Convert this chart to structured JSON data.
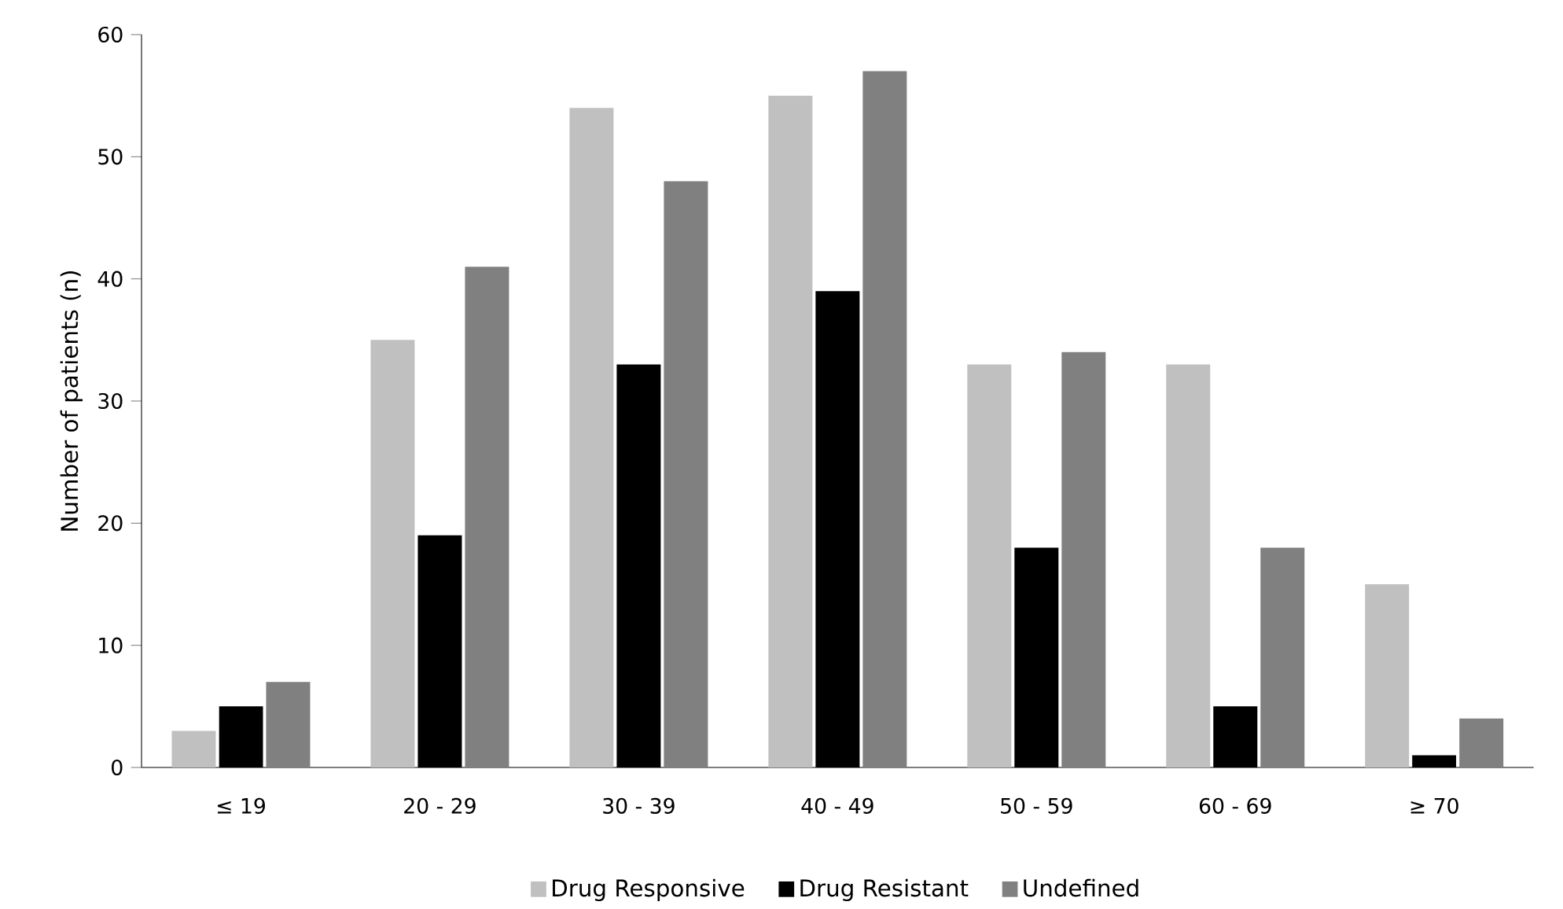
{
  "chart_data": {
    "type": "bar",
    "ylabel": "Number of patients (n)",
    "categories": [
      "≤ 19",
      "20 - 29",
      "30 - 39",
      "40 - 49",
      "50 - 59",
      "60 - 69",
      "≥ 70"
    ],
    "series": [
      {
        "name": "Drug Responsive",
        "color": "#c0c0c0",
        "values": [
          3,
          35,
          54,
          55,
          33,
          33,
          15
        ]
      },
      {
        "name": "Drug Resistant",
        "color": "#000000",
        "values": [
          5,
          19,
          33,
          39,
          18,
          5,
          1
        ]
      },
      {
        "name": "Undefined",
        "color": "#808080",
        "values": [
          7,
          41,
          48,
          57,
          34,
          18,
          4
        ]
      }
    ],
    "ylim": [
      0,
      60
    ],
    "yticks": [
      0,
      10,
      20,
      30,
      40,
      50,
      60
    ],
    "legend": "bottom"
  }
}
